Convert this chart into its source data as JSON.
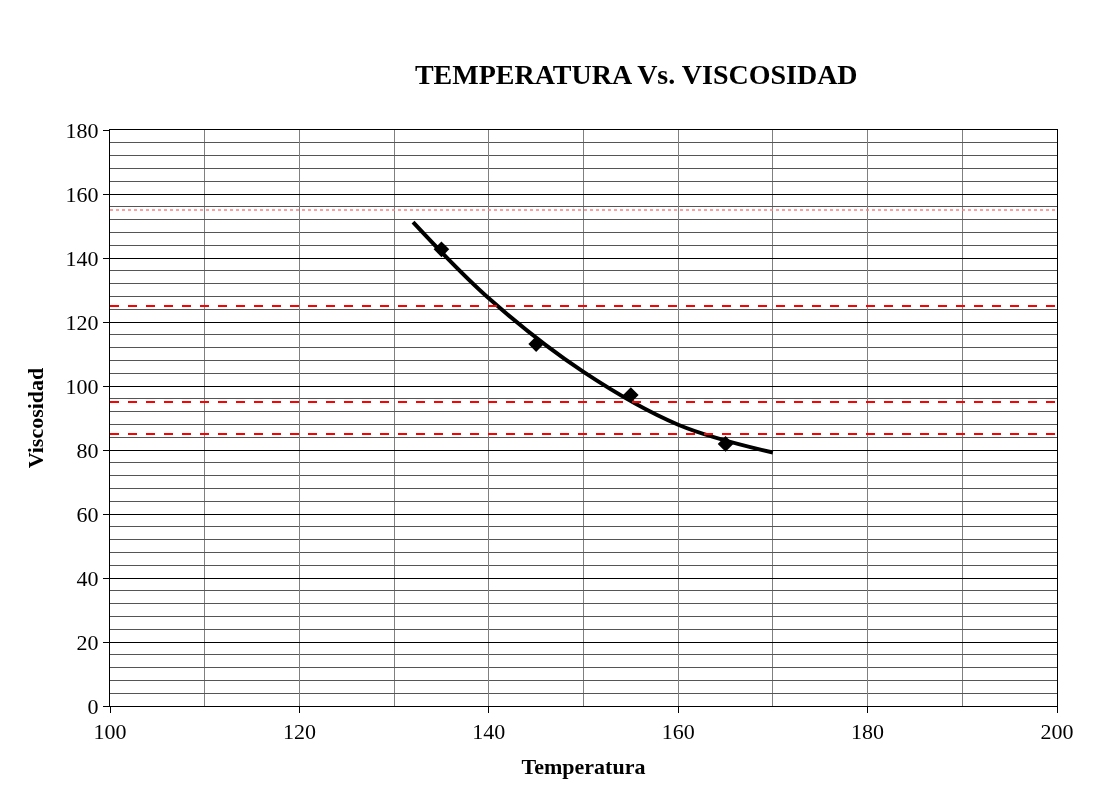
{
  "chart_data": {
    "type": "scatter",
    "title": "TEMPERATURA Vs. VISCOSIDAD",
    "xlabel": "Temperatura",
    "ylabel": "Viscosidad",
    "series": [
      {
        "color": "#000000",
        "x": [
          135,
          145,
          155,
          165
        ],
        "values": [
          142.7,
          113.1,
          97.2,
          81.9
        ],
        "marker": "diamond"
      },
      {
        "type": "line",
        "color": "#000000",
        "x": [
          132,
          140,
          150,
          160,
          170
        ],
        "values": [
          151.2,
          127.4,
          104.4,
          87.9,
          79.2
        ],
        "marker": "none",
        "line_style": "solid"
      }
    ],
    "xlim": [
      100,
      200
    ],
    "xticks": [
      100,
      120,
      140,
      160,
      180,
      200
    ],
    "ylim": [
      0,
      180
    ],
    "yticks": [
      0,
      20,
      40,
      60,
      80,
      100,
      120,
      140,
      160,
      180
    ],
    "grid": true,
    "ref_lines": [
      {
        "axis": "y",
        "value": 155,
        "color": "#ff8080",
        "line_style": "dotted"
      },
      {
        "axis": "y",
        "value": 125,
        "color": "#ff0000",
        "line_style": "dashed"
      },
      {
        "axis": "y",
        "value": 95,
        "color": "#ff0000",
        "line_style": "dashed"
      },
      {
        "axis": "y",
        "value": 85,
        "color": "#ff0000",
        "line_style": "dashed"
      }
    ]
  }
}
